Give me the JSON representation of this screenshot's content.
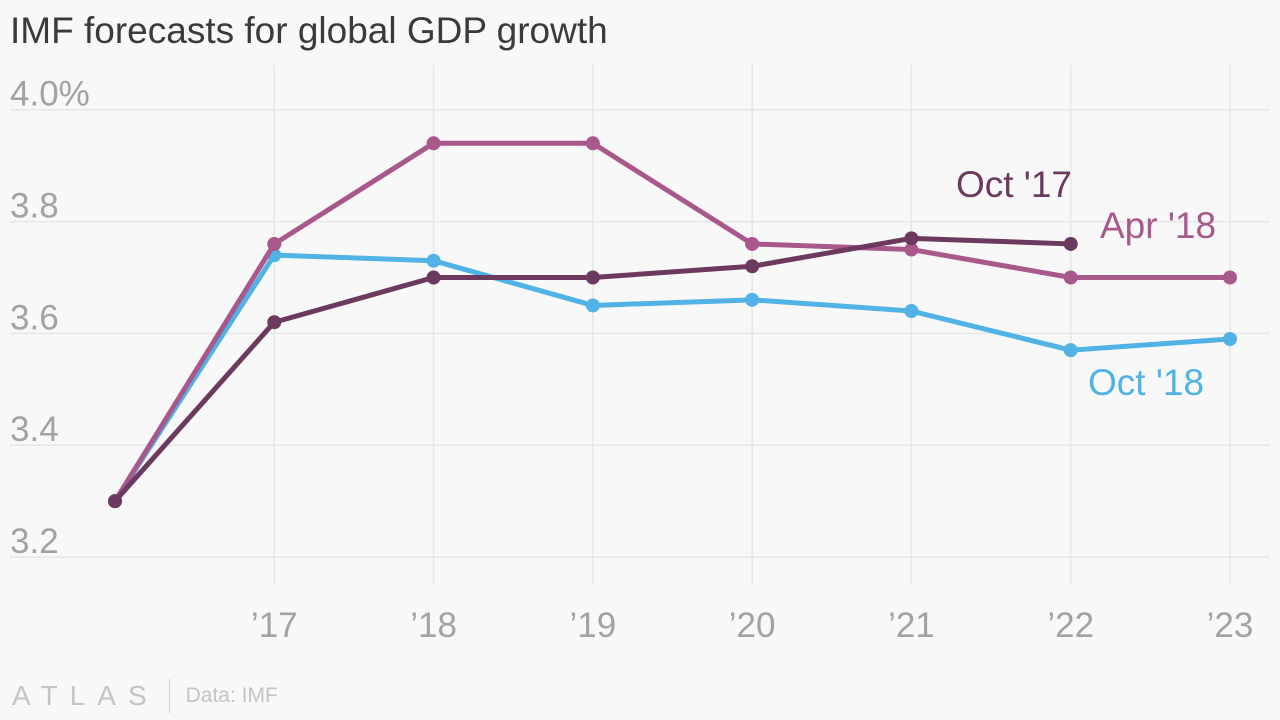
{
  "chart_data": {
    "type": "line",
    "title": "IMF forecasts for global GDP growth",
    "x_range": [
      2016,
      2023
    ],
    "x_ticks": [
      {
        "value": 2017,
        "label": "’17"
      },
      {
        "value": 2018,
        "label": "’18"
      },
      {
        "value": 2019,
        "label": "’19"
      },
      {
        "value": 2020,
        "label": "’20"
      },
      {
        "value": 2021,
        "label": "’21"
      },
      {
        "value": 2022,
        "label": "’22"
      },
      {
        "value": 2023,
        "label": "’23"
      }
    ],
    "ylim": [
      3.1,
      4.08
    ],
    "y_ticks": [
      {
        "value": 3.2,
        "label": "3.2"
      },
      {
        "value": 3.4,
        "label": "3.4"
      },
      {
        "value": 3.6,
        "label": "3.6"
      },
      {
        "value": 3.8,
        "label": "3.8"
      },
      {
        "value": 4.0,
        "label": "4.0%"
      }
    ],
    "grid": true,
    "series": [
      {
        "name": "Oct '18",
        "color": "#51b2e5",
        "points": [
          [
            2016,
            3.3
          ],
          [
            2017,
            3.74
          ],
          [
            2018,
            3.73
          ],
          [
            2019,
            3.65
          ],
          [
            2020,
            3.66
          ],
          [
            2021,
            3.64
          ],
          [
            2022,
            3.57
          ],
          [
            2023,
            3.59
          ]
        ]
      },
      {
        "name": "Apr '18",
        "color": "#a8588b",
        "points": [
          [
            2016,
            3.3
          ],
          [
            2017,
            3.76
          ],
          [
            2018,
            3.94
          ],
          [
            2019,
            3.94
          ],
          [
            2020,
            3.76
          ],
          [
            2021,
            3.75
          ],
          [
            2022,
            3.7
          ],
          [
            2023,
            3.7
          ]
        ]
      },
      {
        "name": "Oct '17",
        "color": "#6b3a5e",
        "points": [
          [
            2016,
            3.3
          ],
          [
            2017,
            3.62
          ],
          [
            2018,
            3.7
          ],
          [
            2019,
            3.7
          ],
          [
            2020,
            3.72
          ],
          [
            2021,
            3.77
          ],
          [
            2022,
            3.76
          ]
        ]
      }
    ]
  },
  "footer": {
    "brand": "ATLAS",
    "source": "Data: IMF"
  }
}
